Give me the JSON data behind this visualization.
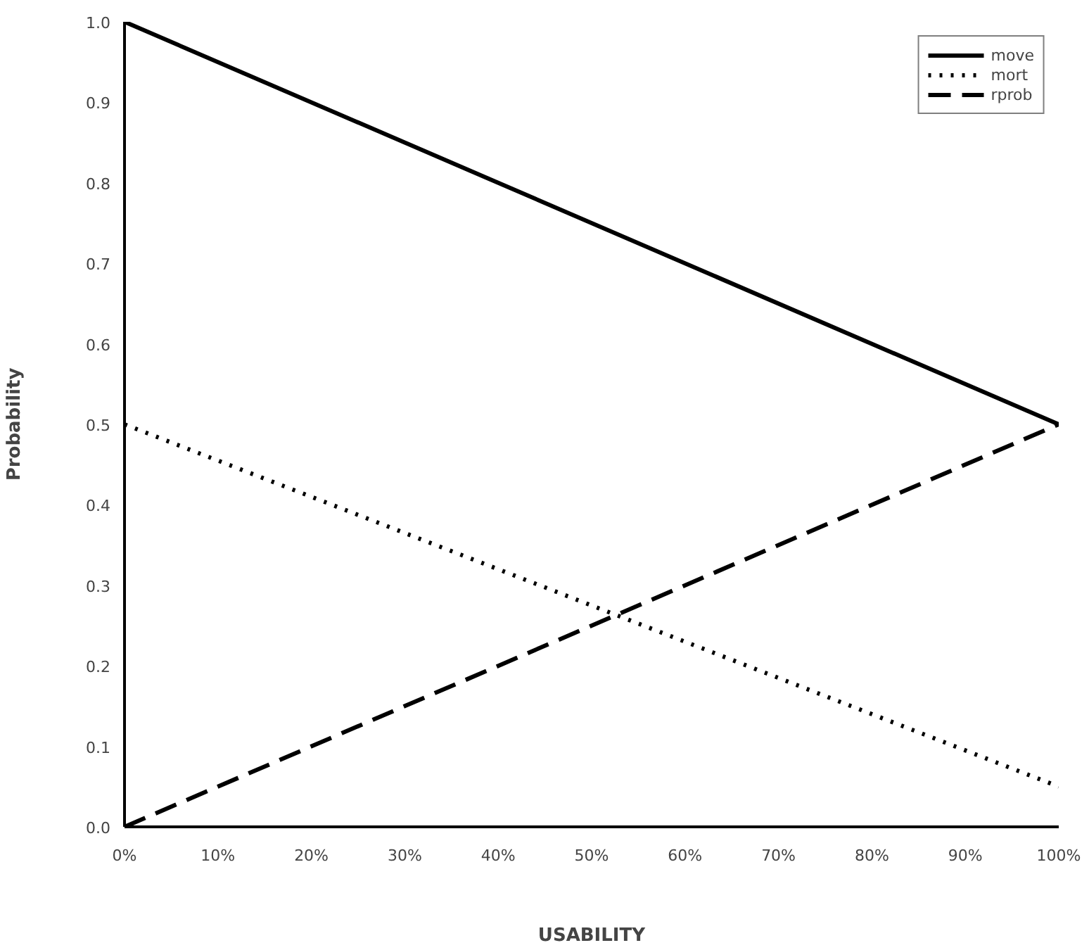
{
  "chart_data": {
    "type": "line",
    "xlabel": "USABILITY",
    "ylabel": "Probability",
    "x": [
      0,
      100
    ],
    "series": [
      {
        "name": "move",
        "color": "#000000",
        "line_style": "solid",
        "values": [
          1.0,
          0.5
        ]
      },
      {
        "name": "mort",
        "color": "#000000",
        "line_style": "dotted",
        "values": [
          0.5,
          0.05
        ]
      },
      {
        "name": "rprob",
        "color": "#000000",
        "line_style": "dashed",
        "values": [
          0.0,
          0.5
        ]
      }
    ],
    "xlim": [
      0,
      100
    ],
    "ylim": [
      0,
      1.0
    ],
    "xticks": [
      {
        "value": 0,
        "label": "0%"
      },
      {
        "value": 10,
        "label": "10%"
      },
      {
        "value": 20,
        "label": "20%"
      },
      {
        "value": 30,
        "label": "30%"
      },
      {
        "value": 40,
        "label": "40%"
      },
      {
        "value": 50,
        "label": "50%"
      },
      {
        "value": 60,
        "label": "60%"
      },
      {
        "value": 70,
        "label": "70%"
      },
      {
        "value": 80,
        "label": "80%"
      },
      {
        "value": 90,
        "label": "90%"
      },
      {
        "value": 100,
        "label": "100%"
      }
    ],
    "yticks": [
      {
        "value": 0,
        "label": "0.0"
      },
      {
        "value": 0.1,
        "label": "0.1"
      },
      {
        "value": 0.2,
        "label": "0.2"
      },
      {
        "value": 0.3,
        "label": "0.3"
      },
      {
        "value": 0.4,
        "label": "0.4"
      },
      {
        "value": 0.5,
        "label": "0.5"
      },
      {
        "value": 0.6,
        "label": "0.6"
      },
      {
        "value": 0.7,
        "label": "0.7"
      },
      {
        "value": 0.8,
        "label": "0.8"
      },
      {
        "value": 0.9,
        "label": "0.9"
      },
      {
        "value": 1.0,
        "label": "1.0"
      }
    ],
    "grid": false,
    "legend": "top right",
    "marker": "none"
  }
}
